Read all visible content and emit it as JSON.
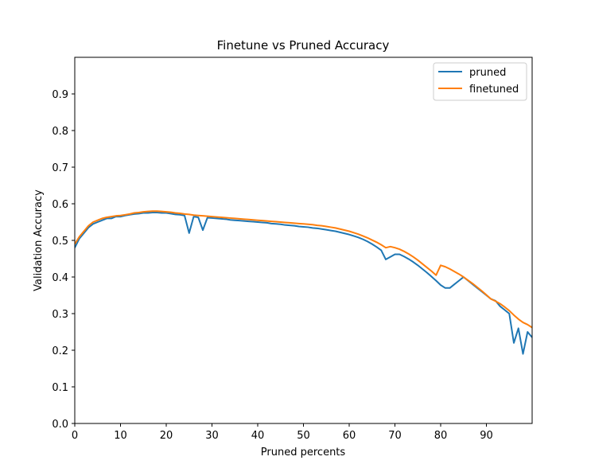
{
  "chart_data": {
    "type": "line",
    "title": "Finetune vs Pruned Accuracy",
    "xlabel": "Pruned percents",
    "ylabel": "Validation Accuracy",
    "xlim": [
      0,
      100
    ],
    "ylim": [
      0,
      1.0
    ],
    "xticks": [
      0,
      10,
      20,
      30,
      40,
      50,
      60,
      70,
      80,
      90
    ],
    "yticks": [
      0.0,
      0.1,
      0.2,
      0.3,
      0.4,
      0.5,
      0.6,
      0.7,
      0.8,
      0.9
    ],
    "xtick_labels": [
      "0",
      "10",
      "20",
      "30",
      "40",
      "50",
      "60",
      "70",
      "80",
      "90"
    ],
    "ytick_labels": [
      "0.0",
      "0.1",
      "0.2",
      "0.3",
      "0.4",
      "0.5",
      "0.6",
      "0.7",
      "0.8",
      "0.9"
    ],
    "grid": false,
    "legend": "top-right",
    "series": [
      {
        "name": "pruned",
        "color": "#1f77b4",
        "x": [
          0,
          1,
          2,
          3,
          4,
          5,
          6,
          7,
          8,
          9,
          10,
          11,
          12,
          13,
          14,
          15,
          16,
          17,
          18,
          19,
          20,
          21,
          22,
          23,
          24,
          25,
          26,
          27,
          28,
          29,
          30,
          31,
          32,
          33,
          34,
          35,
          36,
          37,
          38,
          39,
          40,
          41,
          42,
          43,
          44,
          45,
          46,
          47,
          48,
          49,
          50,
          51,
          52,
          53,
          54,
          55,
          56,
          57,
          58,
          59,
          60,
          61,
          62,
          63,
          64,
          65,
          66,
          67,
          68,
          69,
          70,
          71,
          72,
          73,
          74,
          75,
          76,
          77,
          78,
          79,
          80,
          81,
          82,
          83,
          84,
          85,
          86,
          87,
          88,
          89,
          90,
          91,
          92,
          93,
          94,
          95,
          96,
          97,
          98,
          99,
          100
        ],
        "values": [
          0.48,
          0.505,
          0.52,
          0.535,
          0.545,
          0.55,
          0.555,
          0.56,
          0.56,
          0.565,
          0.565,
          0.568,
          0.57,
          0.572,
          0.573,
          0.575,
          0.575,
          0.576,
          0.576,
          0.575,
          0.575,
          0.573,
          0.571,
          0.57,
          0.568,
          0.52,
          0.565,
          0.563,
          0.528,
          0.562,
          0.561,
          0.56,
          0.559,
          0.558,
          0.556,
          0.555,
          0.554,
          0.553,
          0.552,
          0.551,
          0.55,
          0.549,
          0.548,
          0.546,
          0.545,
          0.544,
          0.542,
          0.541,
          0.54,
          0.538,
          0.537,
          0.536,
          0.534,
          0.533,
          0.531,
          0.529,
          0.527,
          0.525,
          0.522,
          0.519,
          0.516,
          0.512,
          0.508,
          0.503,
          0.497,
          0.49,
          0.482,
          0.473,
          0.448,
          0.455,
          0.462,
          0.462,
          0.456,
          0.449,
          0.441,
          0.432,
          0.422,
          0.412,
          0.401,
          0.39,
          0.378,
          0.37,
          0.37,
          0.38,
          0.39,
          0.4,
          0.39,
          0.38,
          0.37,
          0.36,
          0.35,
          0.34,
          0.335,
          0.32,
          0.31,
          0.3,
          0.22,
          0.26,
          0.19,
          0.25,
          0.235
        ]
      },
      {
        "name": "finetuned",
        "color": "#ff7f0e",
        "x": [
          0,
          1,
          2,
          3,
          4,
          5,
          6,
          7,
          8,
          9,
          10,
          11,
          12,
          13,
          14,
          15,
          16,
          17,
          18,
          19,
          20,
          21,
          22,
          23,
          24,
          25,
          26,
          27,
          28,
          29,
          30,
          31,
          32,
          33,
          34,
          35,
          36,
          37,
          38,
          39,
          40,
          41,
          42,
          43,
          44,
          45,
          46,
          47,
          48,
          49,
          50,
          51,
          52,
          53,
          54,
          55,
          56,
          57,
          58,
          59,
          60,
          61,
          62,
          63,
          64,
          65,
          66,
          67,
          68,
          69,
          70,
          71,
          72,
          73,
          74,
          75,
          76,
          77,
          78,
          79,
          80,
          81,
          82,
          83,
          84,
          85,
          86,
          87,
          88,
          89,
          90,
          91,
          92,
          93,
          94,
          95,
          96,
          97,
          98,
          99,
          100
        ],
        "values": [
          0.49,
          0.51,
          0.525,
          0.54,
          0.55,
          0.555,
          0.56,
          0.563,
          0.565,
          0.567,
          0.568,
          0.57,
          0.572,
          0.575,
          0.576,
          0.578,
          0.579,
          0.58,
          0.58,
          0.579,
          0.578,
          0.577,
          0.575,
          0.574,
          0.572,
          0.571,
          0.569,
          0.568,
          0.567,
          0.566,
          0.565,
          0.564,
          0.563,
          0.562,
          0.561,
          0.56,
          0.559,
          0.558,
          0.557,
          0.556,
          0.555,
          0.554,
          0.553,
          0.552,
          0.551,
          0.55,
          0.549,
          0.548,
          0.547,
          0.546,
          0.545,
          0.544,
          0.543,
          0.541,
          0.54,
          0.538,
          0.536,
          0.534,
          0.531,
          0.528,
          0.525,
          0.521,
          0.517,
          0.512,
          0.507,
          0.501,
          0.495,
          0.488,
          0.48,
          0.483,
          0.48,
          0.476,
          0.47,
          0.463,
          0.455,
          0.446,
          0.436,
          0.426,
          0.416,
          0.405,
          0.432,
          0.428,
          0.422,
          0.415,
          0.408,
          0.4,
          0.391,
          0.382,
          0.372,
          0.362,
          0.351,
          0.34,
          0.334,
          0.327,
          0.318,
          0.308,
          0.296,
          0.285,
          0.276,
          0.27,
          0.262
        ]
      }
    ]
  }
}
